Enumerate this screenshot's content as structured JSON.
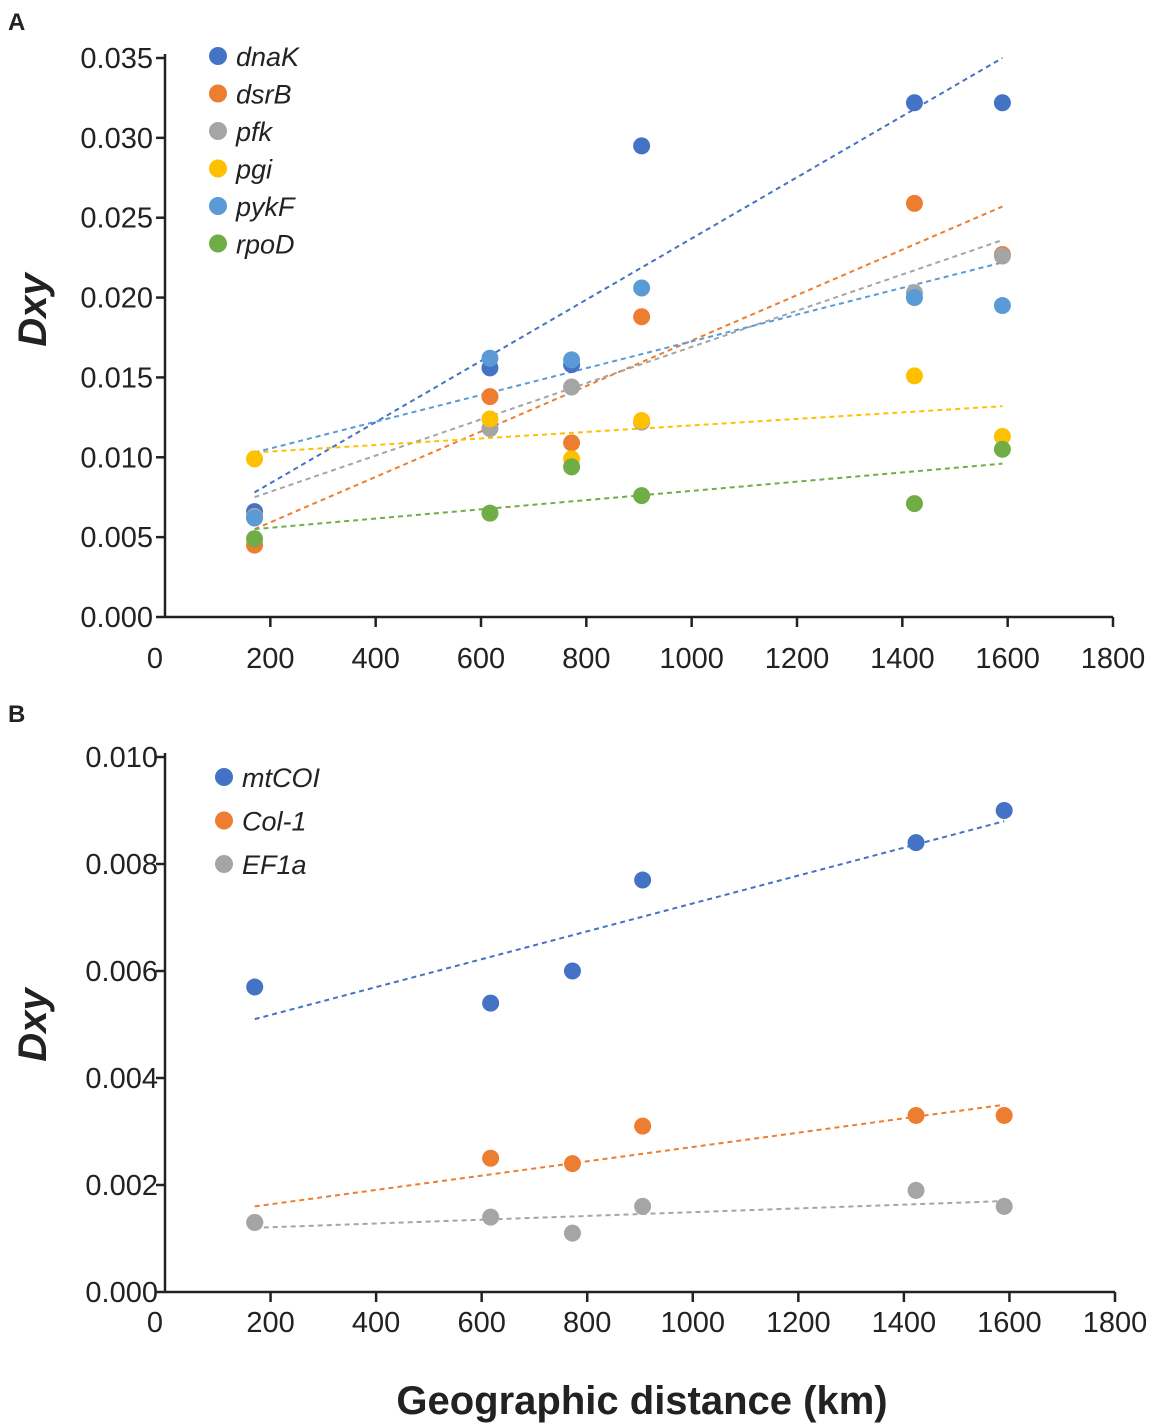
{
  "chart_data": [
    {
      "panel_label": "A",
      "type": "scatter",
      "ylabel": "Dxy",
      "xlim": [
        0,
        1800
      ],
      "ylim": [
        0,
        0.035
      ],
      "x_ticks": [
        0,
        200,
        400,
        600,
        800,
        1000,
        1200,
        1400,
        1600,
        1800
      ],
      "x_tick_labels": [
        "0",
        "200",
        "400",
        "600",
        "800",
        "1000",
        "1200",
        "1400",
        "1600",
        "1800"
      ],
      "y_ticks": [
        0,
        0.005,
        0.01,
        0.015,
        0.02,
        0.025,
        0.03,
        0.035
      ],
      "y_tick_labels": [
        "0.000",
        "0.005",
        "0.010",
        "0.015",
        "0.020",
        "0.025",
        "0.030",
        "0.035"
      ],
      "legend_position": "top-left",
      "series": [
        {
          "name": "dnaK",
          "color": "#4472c4",
          "x": [
            170,
            617,
            772,
            905,
            1423,
            1590
          ],
          "y": [
            0.0066,
            0.0156,
            0.0158,
            0.0295,
            0.0322,
            0.0322
          ],
          "trend": [
            [
              170,
              0.0078
            ],
            [
              1590,
              0.035
            ]
          ]
        },
        {
          "name": "dsrB",
          "color": "#ed7d31",
          "x": [
            170,
            617,
            772,
            905,
            1423,
            1590
          ],
          "y": [
            0.0045,
            0.0138,
            0.0109,
            0.0188,
            0.0259,
            0.0227
          ],
          "trend": [
            [
              170,
              0.0055
            ],
            [
              1590,
              0.0257
            ]
          ]
        },
        {
          "name": "pfk",
          "color": "#a5a5a5",
          "x": [
            170,
            617,
            772,
            905,
            1423,
            1590
          ],
          "y": [
            0.0063,
            0.0118,
            0.0144,
            0.0122,
            0.0203,
            0.0226
          ],
          "trend": [
            [
              170,
              0.0075
            ],
            [
              1590,
              0.0236
            ]
          ]
        },
        {
          "name": "pgi",
          "color": "#ffc000",
          "x": [
            170,
            617,
            772,
            905,
            1423,
            1590
          ],
          "y": [
            0.0099,
            0.0124,
            0.0099,
            0.0123,
            0.0151,
            0.0113
          ],
          "trend": [
            [
              170,
              0.0103
            ],
            [
              1590,
              0.0132
            ]
          ]
        },
        {
          "name": "pykF",
          "color": "#5b9bd5",
          "x": [
            170,
            617,
            772,
            905,
            1423,
            1590
          ],
          "y": [
            0.0062,
            0.0162,
            0.0161,
            0.0206,
            0.02,
            0.0195
          ],
          "trend": [
            [
              170,
              0.0103
            ],
            [
              1590,
              0.0222
            ]
          ]
        },
        {
          "name": "rpoD",
          "color": "#70ad47",
          "x": [
            170,
            617,
            772,
            905,
            1423,
            1590
          ],
          "y": [
            0.0049,
            0.0065,
            0.0094,
            0.0076,
            0.0071,
            0.0105
          ],
          "trend": [
            [
              170,
              0.0055
            ],
            [
              1590,
              0.0096
            ]
          ]
        }
      ]
    },
    {
      "panel_label": "B",
      "type": "scatter",
      "ylabel": "Dxy",
      "xlabel": "Geographic distance (km)",
      "xlim": [
        0,
        1800
      ],
      "ylim": [
        0,
        0.01
      ],
      "x_ticks": [
        0,
        200,
        400,
        600,
        800,
        1000,
        1200,
        1400,
        1600,
        1800
      ],
      "x_tick_labels": [
        "0",
        "200",
        "400",
        "600",
        "800",
        "1000",
        "1200",
        "1400",
        "1600",
        "1800"
      ],
      "y_ticks": [
        0,
        0.002,
        0.004,
        0.006,
        0.008,
        0.01
      ],
      "y_tick_labels": [
        "0.000",
        "0.002",
        "0.004",
        "0.006",
        "0.008",
        "0.010"
      ],
      "legend_position": "top-left",
      "series": [
        {
          "name": "mtCOI",
          "color": "#4472c4",
          "x": [
            170,
            617,
            772,
            905,
            1423,
            1590
          ],
          "y": [
            0.0057,
            0.0054,
            0.006,
            0.0077,
            0.0084,
            0.009
          ],
          "trend": [
            [
              170,
              0.0051
            ],
            [
              1590,
              0.0088
            ]
          ]
        },
        {
          "name": "Col-1",
          "color": "#ed7d31",
          "x": [
            170,
            617,
            772,
            905,
            1423,
            1590
          ],
          "y": [
            0.0013,
            0.0025,
            0.0024,
            0.0031,
            0.0033,
            0.0033
          ],
          "trend": [
            [
              170,
              0.0016
            ],
            [
              1590,
              0.0035
            ]
          ]
        },
        {
          "name": "EF1a",
          "color": "#a5a5a5",
          "x": [
            170,
            617,
            772,
            905,
            1423,
            1590
          ],
          "y": [
            0.0013,
            0.0014,
            0.0011,
            0.0016,
            0.0019,
            0.0016
          ],
          "trend": [
            [
              170,
              0.0012
            ],
            [
              1590,
              0.0017
            ]
          ]
        }
      ]
    }
  ]
}
